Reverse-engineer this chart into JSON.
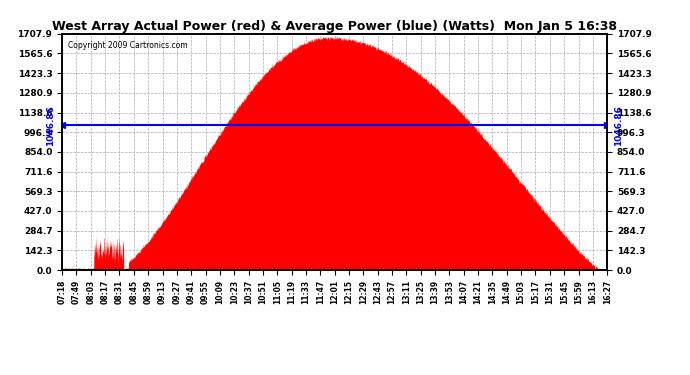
{
  "title": "West Array Actual Power (red) & Average Power (blue) (Watts)  Mon Jan 5 16:38",
  "copyright": "Copyright 2009 Cartronics.com",
  "ymax": 1707.9,
  "ymin": 0.0,
  "yticks": [
    0.0,
    142.3,
    284.7,
    427.0,
    569.3,
    711.6,
    854.0,
    996.3,
    1138.6,
    1280.9,
    1423.3,
    1565.6,
    1707.9
  ],
  "avg_power": 1046.86,
  "avg_label": "1046.86",
  "fill_color": "#FF0000",
  "line_color": "#0000FF",
  "background_color": "#FFFFFF",
  "title_fontsize": 10,
  "copyright_fontsize": 6,
  "xtick_labels": [
    "07:18",
    "07:49",
    "08:03",
    "08:17",
    "08:31",
    "08:45",
    "08:59",
    "09:13",
    "09:27",
    "09:41",
    "09:55",
    "10:09",
    "10:23",
    "10:37",
    "10:51",
    "11:05",
    "11:19",
    "11:33",
    "11:47",
    "12:01",
    "12:15",
    "12:29",
    "12:43",
    "12:57",
    "13:11",
    "13:25",
    "13:39",
    "13:53",
    "14:07",
    "14:21",
    "14:35",
    "14:49",
    "15:03",
    "15:17",
    "15:31",
    "15:45",
    "15:59",
    "16:13",
    "16:27"
  ],
  "peak_power": 1680.0,
  "peak_time_label": "11:47",
  "t_start_label": "07:18",
  "t_end_label": "16:27"
}
